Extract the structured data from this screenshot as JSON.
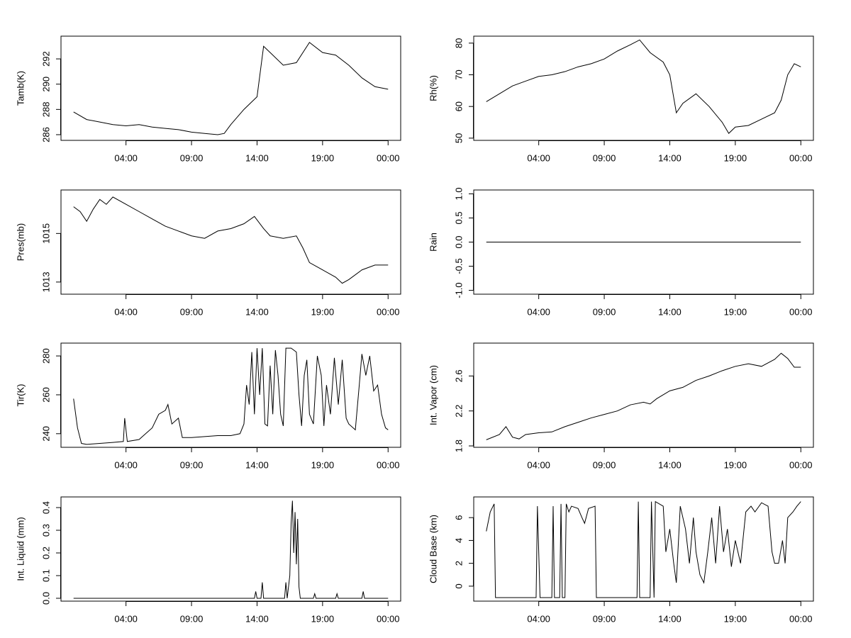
{
  "chart_data": [
    {
      "type": "line",
      "ylabel": "Tamb(K)",
      "color": "#000000",
      "x": [
        0,
        1,
        2,
        3,
        4,
        5,
        6,
        7,
        8,
        9,
        10,
        11,
        11.5,
        12,
        13,
        14,
        14.5,
        15,
        16,
        17,
        18,
        19,
        20,
        21,
        22,
        23,
        24
      ],
      "values": [
        287.8,
        287.2,
        287.0,
        286.8,
        286.7,
        286.8,
        286.6,
        286.5,
        286.4,
        286.2,
        286.1,
        286.0,
        286.1,
        286.8,
        288.0,
        289.0,
        293.0,
        292.5,
        291.5,
        291.7,
        293.3,
        292.5,
        292.3,
        291.5,
        290.5,
        289.8,
        289.6
      ],
      "xlim": [
        -0.96,
        24.96
      ],
      "xticks": [
        {
          "value": 4,
          "label": "04:00"
        },
        {
          "value": 9,
          "label": "09:00"
        },
        {
          "value": 14,
          "label": "14:00"
        },
        {
          "value": 19,
          "label": "19:00"
        },
        {
          "value": 24,
          "label": "00:00"
        }
      ],
      "ylim": [
        285.55,
        293.8
      ],
      "yticks": [
        286,
        288,
        290,
        292
      ]
    },
    {
      "type": "line",
      "ylabel": "Rh(%)",
      "color": "#000000",
      "x": [
        0,
        1,
        2,
        3,
        4,
        5,
        6,
        7,
        8,
        9,
        10,
        11,
        11.7,
        12.5,
        13.5,
        14,
        14.5,
        15,
        16,
        17,
        18,
        18.5,
        19,
        20,
        21,
        22,
        22.5,
        23,
        23.5,
        24
      ],
      "values": [
        61.5,
        64,
        66.5,
        68,
        69.5,
        70,
        71,
        72.5,
        73.5,
        75,
        77.5,
        79.5,
        81,
        77,
        74,
        70,
        58,
        61,
        64,
        60,
        55,
        51.5,
        53.5,
        54,
        56,
        58,
        62,
        70,
        73.5,
        72.5
      ],
      "xlim": [
        -0.96,
        24.96
      ],
      "xticks": [
        {
          "value": 4,
          "label": "04:00"
        },
        {
          "value": 9,
          "label": "09:00"
        },
        {
          "value": 14,
          "label": "14:00"
        },
        {
          "value": 19,
          "label": "19:00"
        },
        {
          "value": 24,
          "label": "00:00"
        }
      ],
      "ylim": [
        49.3,
        82.2
      ],
      "yticks": [
        50,
        60,
        70,
        80
      ]
    },
    {
      "type": "line",
      "ylabel": "Pres(mb)",
      "color": "#000000",
      "x": [
        0,
        0.5,
        1,
        1.5,
        2,
        2.5,
        3,
        4,
        5,
        6,
        7,
        8,
        9,
        10,
        11,
        12,
        13,
        13.8,
        14.5,
        15,
        16,
        17,
        17.5,
        18,
        19,
        20,
        20.5,
        21,
        22,
        23,
        24
      ],
      "values": [
        1016.1,
        1015.9,
        1015.5,
        1016.0,
        1016.4,
        1016.2,
        1016.5,
        1016.2,
        1015.9,
        1015.6,
        1015.3,
        1015.1,
        1014.9,
        1014.8,
        1015.1,
        1015.2,
        1015.4,
        1015.7,
        1015.2,
        1014.9,
        1014.8,
        1014.9,
        1014.4,
        1013.8,
        1013.5,
        1013.2,
        1012.95,
        1013.1,
        1013.5,
        1013.7,
        1013.7
      ],
      "xlim": [
        -0.96,
        24.96
      ],
      "xticks": [
        {
          "value": 4,
          "label": "04:00"
        },
        {
          "value": 9,
          "label": "09:00"
        },
        {
          "value": 14,
          "label": "14:00"
        },
        {
          "value": 19,
          "label": "19:00"
        },
        {
          "value": 24,
          "label": "00:00"
        }
      ],
      "ylim": [
        1012.5,
        1016.79
      ],
      "yticks": [
        1013,
        1015
      ]
    },
    {
      "type": "line",
      "ylabel": "Rain",
      "color": "#000000",
      "x": [
        0,
        24
      ],
      "values": [
        0,
        0
      ],
      "xlim": [
        -0.96,
        24.96
      ],
      "xticks": [
        {
          "value": 4,
          "label": "04:00"
        },
        {
          "value": 9,
          "label": "09:00"
        },
        {
          "value": 14,
          "label": "14:00"
        },
        {
          "value": 19,
          "label": "19:00"
        },
        {
          "value": 24,
          "label": "00:00"
        }
      ],
      "ylim": [
        -1.08,
        1.08
      ],
      "yticks": [
        {
          "value": -1,
          "label": "-1.0"
        },
        {
          "value": -0.5,
          "label": "-0.5"
        },
        {
          "value": 0,
          "label": "0.0"
        },
        {
          "value": 0.5,
          "label": "0.5"
        },
        {
          "value": 1,
          "label": "1.0"
        }
      ]
    },
    {
      "type": "line",
      "ylabel": "Tir(K)",
      "color": "#000000",
      "x": [
        0,
        0.3,
        0.6,
        1,
        2,
        3,
        3.8,
        3.9,
        4.1,
        5,
        5.5,
        6,
        6.5,
        7,
        7.2,
        7.5,
        8,
        8.3,
        9,
        10,
        11,
        12,
        12.7,
        13,
        13.2,
        13.4,
        13.6,
        13.8,
        14,
        14.2,
        14.4,
        14.6,
        14.8,
        15,
        15.2,
        15.4,
        15.6,
        15.8,
        16,
        16.2,
        16.6,
        17,
        17.2,
        17.4,
        17.6,
        17.8,
        18,
        18.3,
        18.6,
        18.9,
        19.1,
        19.3,
        19.6,
        19.9,
        20.2,
        20.5,
        20.8,
        21,
        21.5,
        21.8,
        22,
        22.3,
        22.6,
        22.9,
        23.2,
        23.5,
        23.8,
        24
      ],
      "values": [
        258,
        243,
        235,
        234.5,
        235,
        235.5,
        236,
        248,
        236,
        237,
        240,
        243,
        250,
        252,
        255,
        245,
        248,
        238,
        238,
        238.5,
        239,
        239,
        240,
        245,
        265,
        255,
        282,
        250,
        284,
        260,
        284,
        245,
        244,
        275,
        250,
        283,
        270,
        250,
        244,
        284,
        284,
        282,
        260,
        244,
        270,
        278,
        250,
        245,
        280,
        270,
        244,
        265,
        250,
        279,
        255,
        278,
        248,
        245,
        242,
        265,
        281,
        270,
        280,
        262,
        265,
        250,
        243,
        242
      ],
      "xlim": [
        -0.96,
        24.96
      ],
      "xticks": [
        {
          "value": 4,
          "label": "04:00"
        },
        {
          "value": 9,
          "label": "09:00"
        },
        {
          "value": 14,
          "label": "14:00"
        },
        {
          "value": 19,
          "label": "19:00"
        },
        {
          "value": 24,
          "label": "00:00"
        }
      ],
      "ylim": [
        233.0,
        286.6
      ],
      "yticks": [
        240,
        260,
        280
      ]
    },
    {
      "type": "line",
      "ylabel": "Int. Vapor (cm)",
      "color": "#000000",
      "x": [
        0,
        1,
        1.5,
        2,
        2.5,
        3,
        4,
        5,
        6,
        7,
        8,
        9,
        10,
        11,
        12,
        12.5,
        13,
        14,
        15,
        16,
        17,
        18,
        19,
        20,
        21,
        22,
        22.5,
        23,
        23.5,
        24
      ],
      "values": [
        1.87,
        1.93,
        2.02,
        1.9,
        1.88,
        1.93,
        1.95,
        1.96,
        2.02,
        2.07,
        2.12,
        2.16,
        2.2,
        2.27,
        2.3,
        2.28,
        2.34,
        2.43,
        2.47,
        2.55,
        2.6,
        2.66,
        2.71,
        2.74,
        2.71,
        2.79,
        2.86,
        2.8,
        2.7,
        2.7
      ],
      "xlim": [
        -0.96,
        24.96
      ],
      "xticks": [
        {
          "value": 4,
          "label": "04:00"
        },
        {
          "value": 9,
          "label": "09:00"
        },
        {
          "value": 14,
          "label": "14:00"
        },
        {
          "value": 19,
          "label": "19:00"
        },
        {
          "value": 24,
          "label": "00:00"
        }
      ],
      "ylim": [
        1.784,
        2.976
      ],
      "yticks": [
        1.8,
        2.2,
        2.6
      ]
    },
    {
      "type": "line",
      "ylabel": "Int. Liquid (mm)",
      "color": "#000000",
      "x": [
        0,
        13.8,
        13.9,
        14,
        14.3,
        14.4,
        14.5,
        16.1,
        16.2,
        16.3,
        16.5,
        16.6,
        16.7,
        16.8,
        16.9,
        17,
        17.1,
        17.2,
        17.3,
        18.3,
        18.4,
        18.5,
        20,
        20.1,
        20.2,
        22,
        22.1,
        22.2,
        24
      ],
      "values": [
        0,
        0,
        0.03,
        0,
        0,
        0.07,
        0,
        0,
        0.07,
        0,
        0.1,
        0.33,
        0.43,
        0.2,
        0.38,
        0.15,
        0.35,
        0.05,
        0,
        0,
        0.02,
        0,
        0,
        0.02,
        0,
        0,
        0.03,
        0,
        0
      ],
      "xlim": [
        -0.96,
        24.96
      ],
      "xticks": [
        {
          "value": 4,
          "label": "04:00"
        },
        {
          "value": 9,
          "label": "09:00"
        },
        {
          "value": 14,
          "label": "14:00"
        },
        {
          "value": 19,
          "label": "19:00"
        },
        {
          "value": 24,
          "label": "00:00"
        }
      ],
      "ylim": [
        -0.0126,
        0.447
      ],
      "yticks": [
        {
          "value": 0,
          "label": "0.0"
        },
        0.1,
        0.2,
        0.3,
        0.4
      ]
    },
    {
      "type": "line",
      "ylabel": "Cloud Base (km)",
      "color": "#000000",
      "x": [
        0,
        0.3,
        0.6,
        0.7,
        3.8,
        3.9,
        4.1,
        5,
        5.1,
        5.2,
        5.6,
        5.7,
        5.8,
        6.0,
        6.1,
        6.3,
        6.5,
        7,
        7.3,
        7.5,
        7.8,
        8.3,
        8.4,
        11.5,
        11.6,
        11.7,
        12.5,
        12.6,
        12.8,
        12.9,
        13.5,
        13.7,
        14,
        14.3,
        14.5,
        14.8,
        15.2,
        15.5,
        15.8,
        16,
        16.3,
        16.6,
        16.9,
        17.2,
        17.5,
        17.8,
        18.1,
        18.4,
        18.7,
        19,
        19.4,
        19.8,
        20.2,
        20.5,
        21,
        21.5,
        21.8,
        22,
        22.3,
        22.6,
        22.8,
        23,
        23.4,
        23.7,
        24
      ],
      "values": [
        4.8,
        6.5,
        7.2,
        -1,
        -1,
        7,
        -1,
        -1,
        7,
        -1,
        -1,
        7.2,
        -1,
        -1,
        7.2,
        6.5,
        7,
        6.8,
        6,
        5.5,
        6.8,
        7,
        -1,
        -1,
        7.4,
        -1,
        -1,
        7.4,
        -1,
        7.4,
        7,
        3,
        5,
        2,
        0.3,
        7,
        5,
        2,
        6,
        3,
        1,
        0.3,
        3,
        6,
        2,
        7,
        3,
        5,
        1.7,
        4,
        2,
        6.5,
        7,
        6.5,
        7.3,
        7,
        3,
        2,
        2,
        4,
        2,
        6,
        6.5,
        7,
        7.4
      ],
      "xlim": [
        -0.96,
        24.96
      ],
      "xticks": [
        {
          "value": 4,
          "label": "04:00"
        },
        {
          "value": 9,
          "label": "09:00"
        },
        {
          "value": 14,
          "label": "14:00"
        },
        {
          "value": 19,
          "label": "19:00"
        },
        {
          "value": 24,
          "label": "00:00"
        }
      ],
      "ylim": [
        -1.31,
        7.81
      ],
      "yticks": [
        0,
        2,
        4,
        6
      ]
    }
  ]
}
